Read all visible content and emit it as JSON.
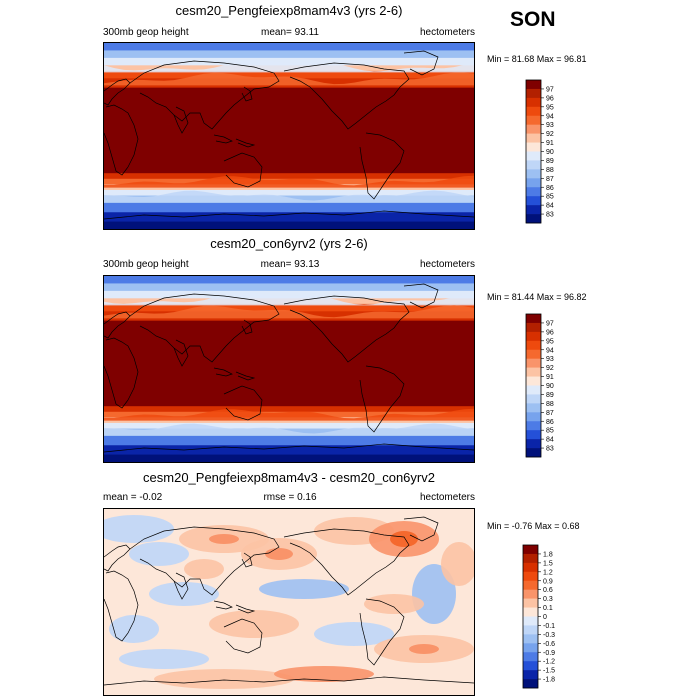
{
  "season": "SON",
  "panels": [
    {
      "title": "cesm20_Pengfeiexp8mam4v3 (yrs 2-6)",
      "left_label": "300mb geop height",
      "center_label": "mean=  93.11",
      "right_label": "hectometers",
      "minmax": "Min = 81.68 Max =  96.81",
      "kind": "field",
      "colorbar": {
        "labels": [
          "97",
          "96",
          "95",
          "94",
          "93",
          "92",
          "91",
          "90",
          "89",
          "88",
          "87",
          "86",
          "85",
          "84",
          "83"
        ],
        "colors": [
          "#7f0000",
          "#b22000",
          "#d73000",
          "#ee4a0e",
          "#f5692e",
          "#f9946a",
          "#fcc3a4",
          "#fde7d9",
          "#dfeafa",
          "#bfd6f7",
          "#9dc0f2",
          "#77a3ed",
          "#4d7be6",
          "#2450d8",
          "#0a24a8",
          "#00117a"
        ]
      }
    },
    {
      "title": "cesm20_con6yrv2 (yrs 2-6)",
      "left_label": "300mb geop height",
      "center_label": "mean=  93.13",
      "right_label": "hectometers",
      "minmax": "Min = 81.44 Max =  96.82",
      "kind": "field",
      "colorbar": {
        "labels": [
          "97",
          "96",
          "95",
          "94",
          "93",
          "92",
          "91",
          "90",
          "89",
          "88",
          "87",
          "86",
          "85",
          "84",
          "83"
        ],
        "colors": [
          "#7f0000",
          "#b22000",
          "#d73000",
          "#ee4a0e",
          "#f5692e",
          "#f9946a",
          "#fcc3a4",
          "#fde7d9",
          "#dfeafa",
          "#bfd6f7",
          "#9dc0f2",
          "#77a3ed",
          "#4d7be6",
          "#2450d8",
          "#0a24a8",
          "#00117a"
        ]
      }
    },
    {
      "title": "cesm20_Pengfeiexp8mam4v3 - cesm20_con6yrv2",
      "left_label": "mean =  -0.02",
      "center_label": "rmse =   0.16",
      "right_label": "hectometers",
      "minmax": "Min = -0.76 Max =  0.68",
      "kind": "diff",
      "colorbar": {
        "labels": [
          "1.8",
          "1.5",
          "1.2",
          "0.9",
          "0.6",
          "0.3",
          "0.1",
          "0",
          "-0.1",
          "-0.3",
          "-0.6",
          "-0.9",
          "-1.2",
          "-1.5",
          "-1.8"
        ],
        "colors": [
          "#7f0000",
          "#b22000",
          "#d73000",
          "#ee4a0e",
          "#f5692e",
          "#f9946a",
          "#fcc3a4",
          "#fde7d9",
          "#dfeafa",
          "#bfd6f7",
          "#9dc0f2",
          "#77a3ed",
          "#4d7be6",
          "#2450d8",
          "#0a24a8",
          "#00117a"
        ]
      }
    }
  ],
  "chart_data": [
    {
      "type": "heatmap",
      "title": "cesm20_Pengfeiexp8mam4v3 (yrs 2-6)",
      "variable": "300mb geop height",
      "units": "hectometers",
      "mean": 93.11,
      "min": 81.68,
      "max": 96.81,
      "levels": [
        83,
        84,
        85,
        86,
        87,
        88,
        89,
        90,
        91,
        92,
        93,
        94,
        95,
        96,
        97
      ]
    },
    {
      "type": "heatmap",
      "title": "cesm20_con6yrv2 (yrs 2-6)",
      "variable": "300mb geop height",
      "units": "hectometers",
      "mean": 93.13,
      "min": 81.44,
      "max": 96.82,
      "levels": [
        83,
        84,
        85,
        86,
        87,
        88,
        89,
        90,
        91,
        92,
        93,
        94,
        95,
        96,
        97
      ]
    },
    {
      "type": "heatmap",
      "title": "cesm20_Pengfeiexp8mam4v3 - cesm20_con6yrv2",
      "units": "hectometers",
      "mean": -0.02,
      "rmse": 0.16,
      "min": -0.76,
      "max": 0.68,
      "levels": [
        -1.8,
        -1.5,
        -1.2,
        -0.9,
        -0.6,
        -0.3,
        -0.1,
        0,
        0.1,
        0.3,
        0.6,
        0.9,
        1.2,
        1.5,
        1.8
      ]
    }
  ]
}
